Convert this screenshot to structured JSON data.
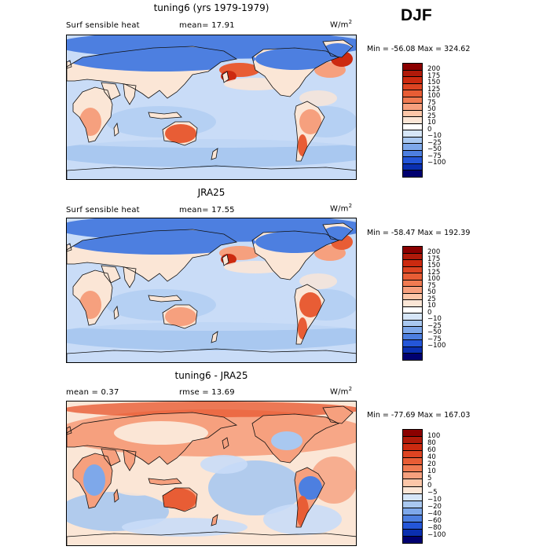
{
  "season": "DJF",
  "panels": [
    {
      "title": "tuning6 (yrs 1979-1979)",
      "left_label": "Surf sensible heat",
      "stat_label": "mean=  17.91",
      "units_base": "W/m",
      "units_exp": "2",
      "minmax": "Min = -56.08 Max = 324.62",
      "scale": "abs"
    },
    {
      "title": "JRA25",
      "left_label": "Surf sensible heat",
      "stat_label": "mean=  17.55",
      "units_base": "W/m",
      "units_exp": "2",
      "minmax": "Min = -58.47 Max = 192.39",
      "scale": "abs"
    },
    {
      "title": "tuning6 - JRA25",
      "left_label": "mean =   0.37",
      "stat_label": "rmse =  13.69",
      "units_base": "W/m",
      "units_exp": "2",
      "minmax": "Min = -77.69 Max = 167.03",
      "scale": "diff"
    }
  ],
  "colorbars": {
    "abs": {
      "labels": [
        "200",
        "175",
        "150",
        "125",
        "100",
        "75",
        "50",
        "25",
        "10",
        "0",
        "−10",
        "−25",
        "−50",
        "−75",
        "−100"
      ],
      "colors": [
        "#8b0000",
        "#b01a0a",
        "#cc2a10",
        "#dd4422",
        "#e85d35",
        "#f07b52",
        "#f6a07e",
        "#fcc6a8",
        "#fbe6d6",
        "#ffffff",
        "#d6e6f8",
        "#a9c8f0",
        "#7ea8ea",
        "#4d7fe0",
        "#2456d8",
        "#0a2fb0",
        "#000070"
      ]
    },
    "diff": {
      "labels": [
        "100",
        "80",
        "60",
        "40",
        "20",
        "10",
        "5",
        "0",
        "−5",
        "−10",
        "−20",
        "−40",
        "−60",
        "−80",
        "−100"
      ],
      "colors": [
        "#8b0000",
        "#b01a0a",
        "#cc2a10",
        "#dd4422",
        "#e85d35",
        "#f07b52",
        "#f6a07e",
        "#fcc6a8",
        "#fbe6d6",
        "#d6e6f8",
        "#a9c8f0",
        "#7ea8ea",
        "#4d7fe0",
        "#2456d8",
        "#0a2fb0",
        "#000070"
      ]
    }
  },
  "colors": {
    "ocean_light": "#c9dcf7",
    "ocean_mid": "#a9c8f0",
    "ocean_blue": "#7ea8ea",
    "deep_blue": "#4d7fe0",
    "warm_light": "#fbe6d6",
    "warm_mid": "#f6a07e",
    "warm_strong": "#e85d35",
    "warm_dark": "#cc2a10",
    "coast": "#111111"
  }
}
